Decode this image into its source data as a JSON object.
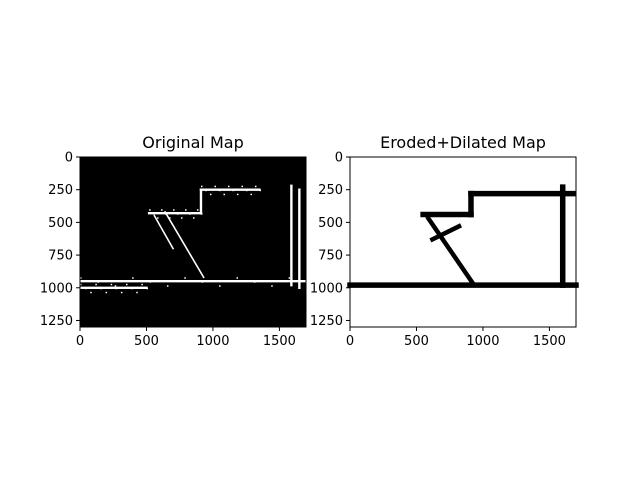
{
  "chart_data": [
    {
      "type": "image",
      "title": "Original Map",
      "xlabel": "",
      "ylabel": "",
      "xlim": [
        0,
        1700
      ],
      "ylim": [
        1300,
        0
      ],
      "xticks": [
        0,
        500,
        1000,
        1500
      ],
      "yticks": [
        0,
        250,
        500,
        750,
        1000,
        1250
      ],
      "colors": {
        "background": "#000000",
        "foreground": "#ffffff"
      },
      "features": [
        {
          "kind": "hline",
          "y": 950,
          "x0": 0,
          "x1": 1700
        },
        {
          "kind": "hline",
          "y": 430,
          "x0": 520,
          "x1": 910
        },
        {
          "kind": "hline",
          "y": 250,
          "x0": 910,
          "x1": 1350
        },
        {
          "kind": "hline",
          "y": 1000,
          "x0": 0,
          "x1": 500
        },
        {
          "kind": "vline",
          "x": 910,
          "y0": 250,
          "y1": 430
        },
        {
          "kind": "vline",
          "x": 1590,
          "y0": 220,
          "y1": 980
        },
        {
          "kind": "vline",
          "x": 1650,
          "y0": 250,
          "y1": 1000
        },
        {
          "kind": "diag",
          "x0": 560,
          "y0": 450,
          "x1": 700,
          "y1": 700
        },
        {
          "kind": "diag",
          "x0": 640,
          "y0": 420,
          "x1": 930,
          "y1": 920
        }
      ]
    },
    {
      "type": "image",
      "title": "Eroded+Dilated Map",
      "xlabel": "",
      "ylabel": "",
      "xlim": [
        0,
        1700
      ],
      "ylim": [
        1300,
        0
      ],
      "xticks": [
        0,
        500,
        1000,
        1500
      ],
      "yticks": [
        0,
        250,
        500,
        750,
        1000,
        1250
      ],
      "colors": {
        "background": "#ffffff",
        "foreground": "#000000"
      },
      "features": [
        {
          "kind": "hline",
          "y": 980,
          "x0": 0,
          "x1": 1700
        },
        {
          "kind": "hline",
          "y": 440,
          "x0": 550,
          "x1": 910
        },
        {
          "kind": "hline",
          "y": 280,
          "x0": 910,
          "x1": 1680
        },
        {
          "kind": "vline",
          "x": 910,
          "y0": 280,
          "y1": 440
        },
        {
          "kind": "vline",
          "x": 1600,
          "y0": 230,
          "y1": 980
        },
        {
          "kind": "diag",
          "x0": 590,
          "y0": 470,
          "x1": 920,
          "y1": 960
        },
        {
          "kind": "diag",
          "x0": 620,
          "y0": 630,
          "x1": 820,
          "y1": 530
        }
      ]
    }
  ]
}
